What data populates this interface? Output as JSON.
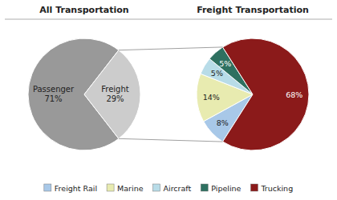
{
  "chart_data": [
    {
      "type": "pie",
      "title": "All Transportation",
      "categories": [
        "Passenger",
        "Freight"
      ],
      "values": [
        71,
        29
      ],
      "value_labels": [
        "71%",
        "29%"
      ],
      "colors": [
        "#999999",
        "#cccccc"
      ],
      "data_labels": true
    },
    {
      "type": "pie",
      "title": "Freight Transportation",
      "categories": [
        "Freight Rail",
        "Marine",
        "Aircraft",
        "Pipeline",
        "Trucking"
      ],
      "values": [
        8,
        14,
        5,
        5,
        68
      ],
      "value_labels": [
        "8%",
        "14%",
        "5%",
        "5%",
        "68%"
      ],
      "colors": [
        "#a8c8e8",
        "#e8ebb0",
        "#b8dce8",
        "#2e7060",
        "#8b1a1a"
      ],
      "data_labels": true,
      "legend": "bottom"
    }
  ]
}
